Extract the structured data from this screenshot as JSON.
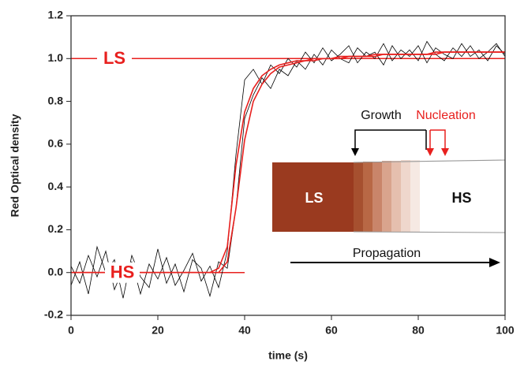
{
  "chart_data": {
    "type": "line",
    "xlabel": "time (s)",
    "ylabel": "Red Optical density",
    "xlim": [
      0,
      100
    ],
    "xticks": [
      0,
      20,
      40,
      60,
      80,
      100
    ],
    "ylim": [
      -0.2,
      1.2
    ],
    "yticks": [
      -0.2,
      {
        "value": 0,
        "label": "0.0"
      },
      0.2,
      0.4,
      0.6,
      0.8,
      {
        "value": 1,
        "label": "1.0"
      },
      1.2
    ],
    "x": [
      0,
      2,
      4,
      6,
      8,
      10,
      12,
      14,
      16,
      18,
      20,
      22,
      24,
      26,
      28,
      30,
      32,
      34,
      36,
      38,
      40,
      42,
      44,
      46,
      48,
      50,
      52,
      54,
      56,
      58,
      60,
      62,
      64,
      66,
      68,
      70,
      72,
      74,
      76,
      78,
      80,
      82,
      84,
      86,
      88,
      90,
      92,
      94,
      96,
      98,
      100
    ],
    "series": [
      {
        "color": "#000000",
        "values": [
          0.03,
          -0.05,
          0.08,
          -0.02,
          0.1,
          -0.08,
          0.02,
          0.05,
          -0.1,
          0.04,
          -0.03,
          0.07,
          -0.06,
          0.01,
          0.09,
          -0.04,
          0.03,
          -0.07,
          0.1,
          0.55,
          0.9,
          0.95,
          0.88,
          0.97,
          0.93,
          1.0,
          0.96,
          1.03,
          0.98,
          1.05,
          0.99,
          1.02,
          1.06,
          0.98,
          1.03,
          1.0,
          1.07,
          0.99,
          1.04,
          1.01,
          1.06,
          0.98,
          1.05,
          1.02,
          1.0,
          1.07,
          1.01,
          1.04,
          0.99,
          1.06,
          1.02
        ]
      },
      {
        "color": "#000000",
        "values": [
          -0.06,
          0.05,
          -0.1,
          0.12,
          0.0,
          0.06,
          -0.12,
          0.08,
          -0.02,
          -0.07,
          0.11,
          -0.05,
          0.04,
          -0.09,
          0.06,
          0.02,
          -0.11,
          0.05,
          0.02,
          0.3,
          0.72,
          0.83,
          0.91,
          0.86,
          0.95,
          0.92,
          0.99,
          0.95,
          1.02,
          0.97,
          1.04,
          1.0,
          0.98,
          1.05,
          1.01,
          1.03,
          0.97,
          1.06,
          1.0,
          1.04,
          0.99,
          1.08,
          1.02,
          0.99,
          1.05,
          1.01,
          1.06,
          1.0,
          1.03,
          1.07,
          1.01
        ]
      },
      {
        "color": "#e8201e",
        "values": [
          0,
          0,
          0,
          0,
          0,
          0,
          0,
          0,
          0,
          0,
          0,
          0,
          0,
          0,
          0,
          0,
          0,
          0.02,
          0.12,
          0.5,
          0.75,
          0.86,
          0.92,
          0.95,
          0.97,
          0.98,
          0.99,
          0.99,
          1.0,
          1.0,
          1.0,
          1.01,
          1.01,
          1.01,
          1.01,
          1.02,
          1.02,
          1.02,
          1.02,
          1.02,
          1.02,
          1.02,
          1.03,
          1.03,
          1.03,
          1.03,
          1.03,
          1.03,
          1.03,
          1.03,
          1.03
        ]
      },
      {
        "color": "#e8201e",
        "values": [
          0,
          0,
          0,
          0,
          0,
          0,
          0,
          0,
          0,
          0,
          0,
          0,
          0,
          0,
          0,
          0,
          0,
          0,
          0.05,
          0.3,
          0.62,
          0.8,
          0.88,
          0.93,
          0.96,
          0.97,
          0.98,
          0.99,
          0.99,
          1.0,
          1.0,
          1.0,
          1.01,
          1.01,
          1.01,
          1.01,
          1.02,
          1.02,
          1.02,
          1.02,
          1.02,
          1.02,
          1.02,
          1.03,
          1.03,
          1.03,
          1.03,
          1.03,
          1.03,
          1.03,
          1.03
        ]
      }
    ],
    "reference_lines": [
      {
        "label": "LS",
        "y": 1,
        "x": [
          0,
          100
        ],
        "color": "#e8201e"
      },
      {
        "label": "HS",
        "y": 0,
        "x": [
          0,
          40
        ],
        "color": "#e8201e"
      }
    ],
    "inset": {
      "growth": "Growth",
      "nucleation": "Nucleation",
      "left_state": "LS",
      "right_state": "HS",
      "propagation": "Propagation"
    }
  }
}
